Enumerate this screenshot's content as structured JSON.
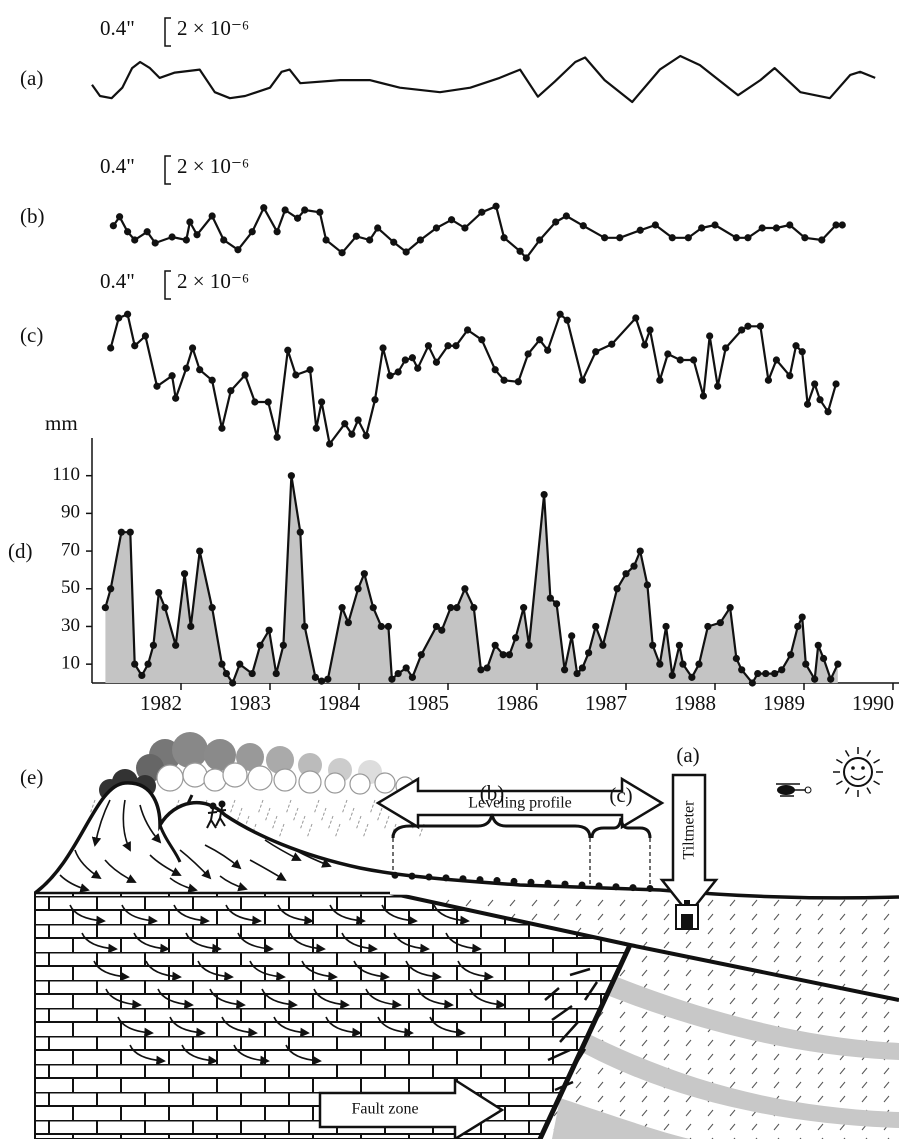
{
  "chart_data": [
    {
      "type": "line",
      "panel_label": "(a)",
      "scale_label": "0.4\"",
      "scale_label_alt": "2 × 10⁻⁶",
      "color": "#111111",
      "markers": false,
      "xlim": [
        1981,
        1990
      ],
      "ylim": [
        0,
        0.65
      ],
      "x": [
        1981.0,
        1981.09,
        1981.22,
        1981.34,
        1981.45,
        1981.54,
        1981.65,
        1981.76,
        1981.93,
        1982.21,
        1982.38,
        1982.55,
        1982.72,
        1983.0,
        1983.13,
        1983.22,
        1983.34,
        1983.79,
        1984.12,
        1984.46,
        1984.91,
        1985.25,
        1985.58,
        1985.81,
        1986.01,
        1986.2,
        1986.43,
        1986.54,
        1986.76,
        1987.07,
        1987.38,
        1987.61,
        1987.83,
        1988.26,
        1988.51,
        1988.67,
        1988.96,
        1989.29,
        1989.52,
        1989.63,
        1989.8
      ],
      "values": [
        0.23,
        0.08,
        0.05,
        0.19,
        0.45,
        0.53,
        0.45,
        0.32,
        0.39,
        0.43,
        0.13,
        0.05,
        0.08,
        0.19,
        0.4,
        0.43,
        0.25,
        0.29,
        0.29,
        0.19,
        0.13,
        0.19,
        0.32,
        0.43,
        0.07,
        0.27,
        0.53,
        0.59,
        0.29,
        0,
        0.43,
        0.61,
        0.49,
        0.09,
        0.29,
        0.45,
        0.13,
        0.05,
        0.36,
        0.4,
        0.32
      ]
    },
    {
      "type": "line",
      "panel_label": "(b)",
      "scale_label": "0.4\"",
      "scale_label_alt": "2 × 10⁻⁶",
      "color": "#111111",
      "markers": true,
      "xlim": [
        1981,
        1990
      ],
      "ylim": [
        0,
        0.7
      ],
      "x": [
        1981.24,
        1981.31,
        1981.4,
        1981.48,
        1981.62,
        1981.71,
        1981.9,
        1982.06,
        1982.1,
        1982.18,
        1982.35,
        1982.48,
        1982.64,
        1982.8,
        1982.93,
        1983.08,
        1983.17,
        1983.31,
        1983.39,
        1983.56,
        1983.63,
        1983.81,
        1983.97,
        1984.12,
        1984.21,
        1984.39,
        1984.53,
        1984.69,
        1984.87,
        1985.04,
        1985.19,
        1985.38,
        1985.54,
        1985.63,
        1985.81,
        1985.88,
        1986.03,
        1986.21,
        1986.33,
        1986.52,
        1986.76,
        1986.93,
        1987.16,
        1987.33,
        1987.52,
        1987.7,
        1987.85,
        1988.0,
        1988.24,
        1988.37,
        1988.53,
        1988.69,
        1988.84,
        1989.01,
        1989.2,
        1989.36,
        1989.43
      ],
      "values": [
        0.43,
        0.55,
        0.35,
        0.24,
        0.35,
        0.2,
        0.28,
        0.24,
        0.48,
        0.31,
        0.56,
        0.24,
        0.11,
        0.35,
        0.67,
        0.35,
        0.64,
        0.53,
        0.64,
        0.61,
        0.24,
        0.07,
        0.29,
        0.24,
        0.4,
        0.21,
        0.08,
        0.24,
        0.4,
        0.51,
        0.4,
        0.61,
        0.69,
        0.27,
        0.09,
        0,
        0.24,
        0.48,
        0.56,
        0.43,
        0.27,
        0.27,
        0.37,
        0.44,
        0.27,
        0.27,
        0.4,
        0.44,
        0.27,
        0.27,
        0.4,
        0.4,
        0.44,
        0.27,
        0.24,
        0.44,
        0.44
      ]
    },
    {
      "type": "line",
      "panel_label": "(c)",
      "scale_label": "0.4\"",
      "scale_label_alt": "2 × 10⁻⁶",
      "color": "#111111",
      "markers": true,
      "xlim": [
        1981,
        1990
      ],
      "ylim": [
        0,
        1.8
      ],
      "x": [
        1981.21,
        1981.3,
        1981.4,
        1981.48,
        1981.6,
        1981.73,
        1981.9,
        1981.94,
        1982.06,
        1982.13,
        1982.21,
        1982.35,
        1982.46,
        1982.56,
        1982.72,
        1982.83,
        1982.98,
        1983.08,
        1983.2,
        1983.29,
        1983.45,
        1983.52,
        1983.58,
        1983.67,
        1983.84,
        1983.92,
        1983.99,
        1984.08,
        1984.18,
        1984.27,
        1984.35,
        1984.44,
        1984.52,
        1984.6,
        1984.66,
        1984.78,
        1984.87,
        1985.0,
        1985.09,
        1985.22,
        1985.38,
        1985.53,
        1985.63,
        1985.79,
        1985.9,
        1986.03,
        1986.12,
        1986.26,
        1986.34,
        1986.51,
        1986.66,
        1986.84,
        1987.11,
        1987.21,
        1987.27,
        1987.38,
        1987.47,
        1987.61,
        1987.76,
        1987.87,
        1987.94,
        1988.03,
        1988.12,
        1988.3,
        1988.37,
        1988.51,
        1988.6,
        1988.69,
        1988.84,
        1988.91,
        1988.98,
        1989.04,
        1989.12,
        1989.18,
        1989.27,
        1989.36
      ],
      "values": [
        1.28,
        1.68,
        1.73,
        1.31,
        1.44,
        0.77,
        0.91,
        0.61,
        1.01,
        1.28,
        0.99,
        0.85,
        0.21,
        0.71,
        0.92,
        0.56,
        0.56,
        0.09,
        1.25,
        0.92,
        0.99,
        0.21,
        0.56,
        0,
        0.27,
        0.13,
        0.32,
        0.11,
        0.59,
        1.28,
        0.91,
        0.96,
        1.12,
        1.15,
        1.01,
        1.31,
        1.09,
        1.31,
        1.31,
        1.52,
        1.39,
        0.99,
        0.85,
        0.83,
        1.2,
        1.39,
        1.25,
        1.73,
        1.65,
        0.85,
        1.23,
        1.33,
        1.68,
        1.32,
        1.52,
        0.85,
        1.2,
        1.12,
        1.12,
        0.64,
        1.44,
        0.77,
        1.28,
        1.52,
        1.57,
        1.57,
        0.85,
        1.12,
        0.91,
        1.31,
        1.23,
        0.53,
        0.8,
        0.59,
        0.43,
        0.8
      ]
    },
    {
      "type": "area",
      "panel_label": "(d)",
      "ylabel": "mm",
      "color": "#c4c4c4",
      "markers": true,
      "xlim": [
        1981,
        1990
      ],
      "ylim": [
        0,
        130
      ],
      "yticks": [
        10,
        30,
        50,
        70,
        90,
        110
      ],
      "xticks": [
        1982,
        1983,
        1984,
        1985,
        1986,
        1987,
        1988,
        1989,
        1990
      ],
      "x": [
        1981.15,
        1981.21,
        1981.33,
        1981.43,
        1981.48,
        1981.56,
        1981.63,
        1981.69,
        1981.75,
        1981.82,
        1981.94,
        1982.04,
        1982.11,
        1982.21,
        1982.35,
        1982.46,
        1982.51,
        1982.58,
        1982.66,
        1982.8,
        1982.89,
        1982.99,
        1983.07,
        1983.15,
        1983.24,
        1983.34,
        1983.39,
        1983.51,
        1983.58,
        1983.65,
        1983.81,
        1983.88,
        1983.99,
        1984.06,
        1984.16,
        1984.25,
        1984.33,
        1984.37,
        1984.44,
        1984.53,
        1984.6,
        1984.7,
        1984.87,
        1984.93,
        1985.03,
        1985.1,
        1985.19,
        1985.29,
        1985.37,
        1985.44,
        1985.53,
        1985.62,
        1985.69,
        1985.76,
        1985.85,
        1985.91,
        1986.08,
        1986.15,
        1986.22,
        1986.31,
        1986.39,
        1986.45,
        1986.51,
        1986.58,
        1986.66,
        1986.74,
        1986.9,
        1987.0,
        1987.09,
        1987.16,
        1987.24,
        1987.3,
        1987.38,
        1987.45,
        1987.52,
        1987.6,
        1987.64,
        1987.74,
        1987.82,
        1987.92,
        1988.06,
        1988.17,
        1988.24,
        1988.3,
        1988.42,
        1988.48,
        1988.57,
        1988.67,
        1988.75,
        1988.85,
        1988.93,
        1988.98,
        1989.02,
        1989.12,
        1989.16,
        1989.22,
        1989.3,
        1989.38
      ],
      "values": [
        40,
        50,
        80,
        80,
        10,
        4,
        10,
        20,
        48,
        40,
        20,
        58,
        30,
        70,
        40,
        10,
        5,
        0,
        10,
        5,
        20,
        28,
        5,
        20,
        110,
        80,
        30,
        3,
        1,
        2,
        40,
        32,
        50,
        58,
        40,
        30,
        30,
        2,
        5,
        8,
        3,
        15,
        30,
        28,
        40,
        40,
        50,
        40,
        7,
        8,
        20,
        15,
        15,
        24,
        40,
        20,
        100,
        45,
        42,
        7,
        25,
        5,
        8,
        16,
        30,
        20,
        50,
        58,
        62,
        70,
        52,
        20,
        10,
        30,
        4,
        20,
        10,
        3,
        10,
        30,
        32,
        40,
        13,
        7,
        0,
        5,
        5,
        5,
        7,
        15,
        30,
        35,
        10,
        2,
        20,
        13,
        2,
        10
      ]
    }
  ],
  "diagram": {
    "panel_label": "(e)",
    "tiltmeter_label": "(a)",
    "leveling": "Leveling profile",
    "segment_b": "(b)",
    "segment_c": "(c)",
    "tiltmeter": "Tiltmeter",
    "fault": "Fault zone"
  }
}
